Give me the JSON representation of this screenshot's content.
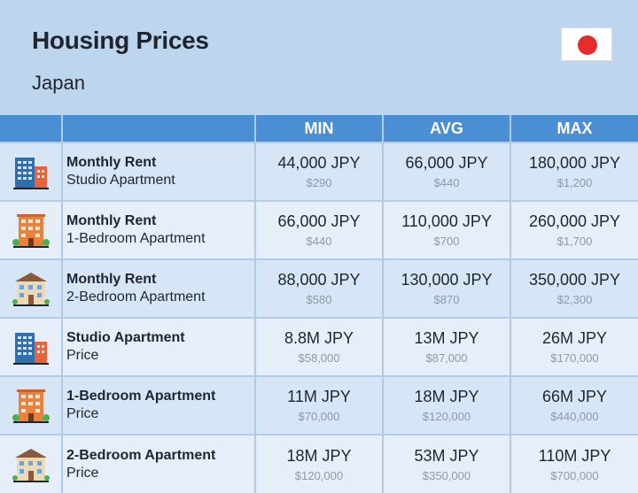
{
  "header": {
    "title": "Housing Prices",
    "subtitle": "Japan",
    "flag_icon": "japan-flag-icon"
  },
  "table": {
    "columns": [
      "",
      "",
      "MIN",
      "AVG",
      "MAX"
    ],
    "rows": [
      {
        "icon": "blue-highrise-building-icon",
        "label": "Monthly Rent",
        "sublabel": "Studio Apartment",
        "min": "44,000 JPY",
        "min_usd": "$290",
        "avg": "66,000 JPY",
        "avg_usd": "$440",
        "max": "180,000 JPY",
        "max_usd": "$1,200"
      },
      {
        "icon": "orange-apartment-building-icon",
        "label": "Monthly Rent",
        "sublabel": "1-Bedroom Apartment",
        "min": "66,000 JPY",
        "min_usd": "$440",
        "avg": "110,000 JPY",
        "avg_usd": "$700",
        "max": "260,000 JPY",
        "max_usd": "$1,700"
      },
      {
        "icon": "beige-house-building-icon",
        "label": "Monthly Rent",
        "sublabel": "2-Bedroom Apartment",
        "min": "88,000 JPY",
        "min_usd": "$580",
        "avg": "130,000 JPY",
        "avg_usd": "$870",
        "max": "350,000 JPY",
        "max_usd": "$2,300"
      },
      {
        "icon": "blue-highrise-building-icon",
        "label": "Studio Apartment",
        "sublabel": "Price",
        "min": "8.8M JPY",
        "min_usd": "$58,000",
        "avg": "13M JPY",
        "avg_usd": "$87,000",
        "max": "26M JPY",
        "max_usd": "$170,000"
      },
      {
        "icon": "orange-apartment-building-icon",
        "label": "1-Bedroom Apartment",
        "sublabel": "Price",
        "min": "11M JPY",
        "min_usd": "$70,000",
        "avg": "18M JPY",
        "avg_usd": "$120,000",
        "max": "66M JPY",
        "max_usd": "$440,000"
      },
      {
        "icon": "beige-house-building-icon",
        "label": "2-Bedroom Apartment",
        "sublabel": "Price",
        "min": "18M JPY",
        "min_usd": "$120,000",
        "avg": "53M JPY",
        "avg_usd": "$350,000",
        "max": "110M JPY",
        "max_usd": "$700,000"
      }
    ]
  },
  "colors": {
    "background": "#bdd6ee",
    "header_row": "#4a8fd4",
    "row_odd": "#d7e6f6",
    "row_even": "#e6eff9",
    "usd_text": "#8e99a6",
    "flag_disc": "#e52d2d"
  }
}
